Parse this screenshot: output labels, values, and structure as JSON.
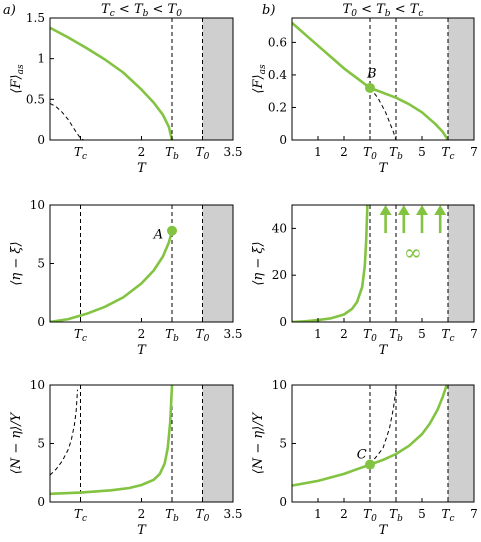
{
  "colors": {
    "green": "#82c341",
    "shade": "#cfcfcf",
    "black": "#000000"
  },
  "chart_data": [
    {
      "type": "line",
      "panel": "a1",
      "panel_label": "a)",
      "title": "T_c < T_b < T_0",
      "xlabel": "T",
      "ylabel": "⟨F⟩_as",
      "xlim": [
        0.5,
        3.5
      ],
      "ylim": [
        0,
        1.5
      ],
      "xticks": [
        {
          "v": 1.0,
          "t": "T_c"
        },
        {
          "v": 2.0,
          "t": "2"
        },
        {
          "v": 2.5,
          "t": "T_b"
        },
        {
          "v": 3.0,
          "t": "T_0"
        },
        {
          "v": 3.5,
          "t": "3.5"
        }
      ],
      "yticks": [
        {
          "v": 0,
          "t": "0"
        },
        {
          "v": 0.5,
          "t": "0.5"
        },
        {
          "v": 1,
          "t": "1"
        },
        {
          "v": 1.5,
          "t": "1.5"
        }
      ],
      "shade": [
        3.0,
        3.5
      ],
      "vlines": [
        2.5,
        3.0
      ],
      "series": [
        {
          "style": "green",
          "x": [
            0.5,
            0.8,
            1.1,
            1.4,
            1.7,
            2.0,
            2.2,
            2.35,
            2.45,
            2.5
          ],
          "y": [
            1.38,
            1.26,
            1.13,
            0.99,
            0.83,
            0.62,
            0.46,
            0.31,
            0.16,
            0.0
          ]
        },
        {
          "style": "dashed",
          "x": [
            0.5,
            0.6,
            0.7,
            0.8,
            0.9,
            1.0,
            1.05,
            3.0
          ],
          "y": [
            0.45,
            0.41,
            0.34,
            0.25,
            0.13,
            0.02,
            0.0,
            0.0
          ]
        }
      ],
      "markers": [],
      "annotations": []
    },
    {
      "type": "line",
      "panel": "b1",
      "panel_label": "b)",
      "title": "T_0 < T_b < T_c",
      "xlabel": "T",
      "ylabel": "⟨F⟩_as",
      "xlim": [
        0,
        7
      ],
      "ylim": [
        0,
        0.75
      ],
      "xticks": [
        {
          "v": 1,
          "t": "1"
        },
        {
          "v": 2,
          "t": "2"
        },
        {
          "v": 3,
          "t": "T_0"
        },
        {
          "v": 4,
          "t": "T_b"
        },
        {
          "v": 5,
          "t": "5"
        },
        {
          "v": 6,
          "t": "T_c"
        },
        {
          "v": 7,
          "t": "7"
        }
      ],
      "yticks": [
        {
          "v": 0,
          "t": "0"
        },
        {
          "v": 0.2,
          "t": "0.2"
        },
        {
          "v": 0.4,
          "t": "0.4"
        },
        {
          "v": 0.6,
          "t": "0.6"
        }
      ],
      "shade": [
        6,
        7
      ],
      "vlines": [
        3,
        4,
        6
      ],
      "series": [
        {
          "style": "green",
          "x": [
            0,
            0.5,
            1,
            1.5,
            2,
            2.5,
            3,
            3.5,
            4,
            4.5,
            5,
            5.5,
            5.8,
            6
          ],
          "y": [
            0.72,
            0.65,
            0.58,
            0.51,
            0.44,
            0.38,
            0.32,
            0.29,
            0.26,
            0.22,
            0.17,
            0.1,
            0.05,
            0.0
          ]
        },
        {
          "style": "dashed",
          "x": [
            3,
            3.3,
            3.6,
            3.9,
            4.0,
            6.0
          ],
          "y": [
            0.32,
            0.26,
            0.17,
            0.05,
            0.0,
            0.0
          ]
        }
      ],
      "markers": [
        {
          "x": 3,
          "y": 0.32
        }
      ],
      "annotations": [
        {
          "text": "B",
          "x": 3.0,
          "y": 0.36
        }
      ]
    },
    {
      "type": "line",
      "panel": "a2",
      "xlabel": "T",
      "ylabel": "⟨η − ξ⟩",
      "xlim": [
        0.5,
        3.5
      ],
      "ylim": [
        0,
        10
      ],
      "xticks": [
        {
          "v": 1.0,
          "t": "T_c"
        },
        {
          "v": 2.0,
          "t": "2"
        },
        {
          "v": 2.5,
          "t": "T_b"
        },
        {
          "v": 3.0,
          "t": "T_0"
        },
        {
          "v": 3.5,
          "t": "3.5"
        }
      ],
      "yticks": [
        {
          "v": 0,
          "t": "0"
        },
        {
          "v": 5,
          "t": "5"
        },
        {
          "v": 10,
          "t": "10"
        }
      ],
      "shade": [
        3.0,
        3.5
      ],
      "vlines": [
        1.0,
        2.5,
        3.0
      ],
      "series": [
        {
          "style": "green",
          "x": [
            0.5,
            0.8,
            1.1,
            1.4,
            1.7,
            2.0,
            2.2,
            2.35,
            2.45,
            2.5
          ],
          "y": [
            0,
            0.25,
            0.7,
            1.3,
            2.1,
            3.3,
            4.4,
            5.6,
            6.8,
            7.8
          ]
        }
      ],
      "markers": [
        {
          "x": 2.5,
          "y": 7.8
        }
      ],
      "annotations": [
        {
          "text": "A",
          "x": 2.42,
          "y": 7.5
        }
      ]
    },
    {
      "type": "line",
      "panel": "b2",
      "xlabel": "T",
      "ylabel": "⟨η − ξ⟩",
      "xlim": [
        0,
        7
      ],
      "ylim": [
        0,
        50
      ],
      "xticks": [
        {
          "v": 1,
          "t": "1"
        },
        {
          "v": 2,
          "t": "2"
        },
        {
          "v": 3,
          "t": "T_0"
        },
        {
          "v": 4,
          "t": "T_b"
        },
        {
          "v": 5,
          "t": "5"
        },
        {
          "v": 6,
          "t": "T_c"
        },
        {
          "v": 7,
          "t": "7"
        }
      ],
      "yticks": [
        {
          "v": 0,
          "t": "0"
        },
        {
          "v": 20,
          "t": "20"
        },
        {
          "v": 40,
          "t": "40"
        }
      ],
      "shade": [
        6,
        7
      ],
      "vlines": [
        3,
        4,
        6
      ],
      "series": [
        {
          "style": "green",
          "x": [
            0,
            0.5,
            1,
            1.5,
            2,
            2.3,
            2.5,
            2.7,
            2.8,
            2.85,
            2.9
          ],
          "y": [
            0,
            0.3,
            0.8,
            1.6,
            3.2,
            5.5,
            8.5,
            15,
            24,
            34,
            50
          ]
        }
      ],
      "markers": [],
      "arrows": [
        {
          "x": 3.6,
          "y0": 38,
          "y1": 50
        },
        {
          "x": 4.3,
          "y0": 38,
          "y1": 50
        },
        {
          "x": 5.0,
          "y0": 38,
          "y1": 50
        },
        {
          "x": 5.7,
          "y0": 38,
          "y1": 50
        }
      ],
      "infinity": {
        "text": "∞",
        "x": 4.65,
        "y": 29
      },
      "annotations": []
    },
    {
      "type": "line",
      "panel": "a3",
      "xlabel": "T",
      "ylabel": "⟨N − η⟩/Y",
      "xlim": [
        0.5,
        3.5
      ],
      "ylim": [
        0,
        10
      ],
      "xticks": [
        {
          "v": 1.0,
          "t": "T_c"
        },
        {
          "v": 2.0,
          "t": "2"
        },
        {
          "v": 2.5,
          "t": "T_b"
        },
        {
          "v": 3.0,
          "t": "T_0"
        },
        {
          "v": 3.5,
          "t": "3.5"
        }
      ],
      "yticks": [
        {
          "v": 0,
          "t": "0"
        },
        {
          "v": 5,
          "t": "5"
        },
        {
          "v": 10,
          "t": "10"
        }
      ],
      "shade": [
        3.0,
        3.5
      ],
      "vlines": [
        1.0,
        2.5,
        3.0
      ],
      "series": [
        {
          "style": "green",
          "x": [
            0.5,
            1.0,
            1.5,
            1.8,
            2.0,
            2.2,
            2.3,
            2.38,
            2.43,
            2.47,
            2.5
          ],
          "y": [
            0.7,
            0.8,
            1.0,
            1.2,
            1.45,
            1.9,
            2.4,
            3.3,
            4.6,
            6.8,
            10
          ]
        },
        {
          "style": "dashed",
          "x": [
            0.5,
            0.6,
            0.7,
            0.8,
            0.85,
            0.9,
            0.93,
            0.95
          ],
          "y": [
            2.3,
            2.8,
            3.5,
            4.5,
            5.3,
            6.6,
            7.8,
            9.6
          ]
        },
        {
          "style": "dashed",
          "x": [
            1.0,
            3.0
          ],
          "y": [
            0.0,
            0.0
          ]
        }
      ],
      "markers": [],
      "annotations": []
    },
    {
      "type": "line",
      "panel": "b3",
      "xlabel": "T",
      "ylabel": "⟨N − η⟩/Y",
      "xlim": [
        0,
        7
      ],
      "ylim": [
        0,
        10
      ],
      "xticks": [
        {
          "v": 1,
          "t": "1"
        },
        {
          "v": 2,
          "t": "2"
        },
        {
          "v": 3,
          "t": "T_0"
        },
        {
          "v": 4,
          "t": "T_b"
        },
        {
          "v": 5,
          "t": "5"
        },
        {
          "v": 6,
          "t": "T_c"
        },
        {
          "v": 7,
          "t": "7"
        }
      ],
      "yticks": [
        {
          "v": 0,
          "t": "0"
        },
        {
          "v": 5,
          "t": "5"
        },
        {
          "v": 10,
          "t": "10"
        }
      ],
      "shade": [
        6,
        7
      ],
      "vlines": [
        3,
        4,
        6
      ],
      "series": [
        {
          "style": "green",
          "x": [
            0,
            1,
            2,
            2.5,
            3,
            3.5,
            4,
            4.5,
            5,
            5.3,
            5.6,
            5.8,
            5.95
          ],
          "y": [
            1.4,
            1.8,
            2.4,
            2.8,
            3.2,
            3.6,
            4.1,
            4.8,
            5.8,
            6.7,
            7.9,
            9.0,
            10
          ]
        },
        {
          "style": "dashed",
          "x": [
            3,
            3.5,
            3.75,
            3.9,
            4.0
          ],
          "y": [
            3.2,
            4.6,
            6.3,
            8.0,
            9.6
          ]
        }
      ],
      "markers": [
        {
          "x": 3,
          "y": 3.2
        }
      ],
      "annotations": [
        {
          "text": "C",
          "x": 2.95,
          "y": 3.9
        }
      ]
    }
  ]
}
